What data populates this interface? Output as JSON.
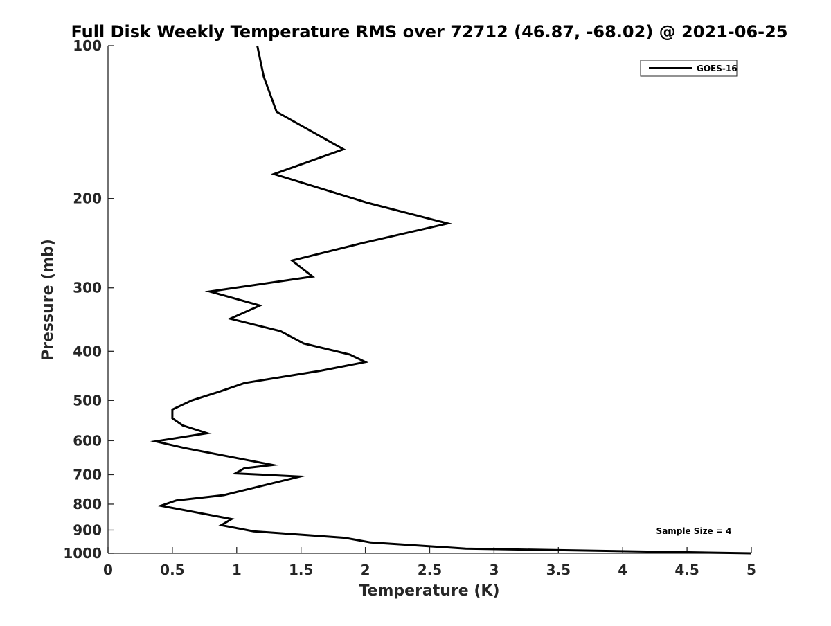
{
  "chart_data": {
    "type": "line",
    "title": "Full Disk Weekly Temperature RMS over 72712 (46.87, -68.02) @ 2021-06-25",
    "xlabel": "Temperature (K)",
    "ylabel": "Pressure (mb)",
    "xlim": [
      0,
      5
    ],
    "ylim": [
      100,
      1000
    ],
    "yscale": "log",
    "yreversed": true,
    "grid": false,
    "legend_position": "top-right",
    "xticks": [
      0,
      0.5,
      1,
      1.5,
      2,
      2.5,
      3,
      3.5,
      4,
      4.5,
      5
    ],
    "xtick_labels": [
      "0",
      "0.5",
      "1",
      "1.5",
      "2",
      "2.5",
      "3",
      "3.5",
      "4",
      "4.5",
      "5"
    ],
    "yticks": [
      100,
      200,
      300,
      400,
      500,
      600,
      700,
      800,
      900,
      1000
    ],
    "ytick_labels": [
      "100",
      "200",
      "300",
      "400",
      "500",
      "600",
      "700",
      "800",
      "900",
      "1000"
    ],
    "annotation": "Sample Size = 4",
    "series": [
      {
        "name": "GOES-16",
        "color": "#000000",
        "points": [
          [
            1.16,
            100
          ],
          [
            1.21,
            115
          ],
          [
            1.31,
            135
          ],
          [
            1.83,
            160
          ],
          [
            1.29,
            179
          ],
          [
            2.02,
            204
          ],
          [
            2.64,
            224
          ],
          [
            1.97,
            245
          ],
          [
            1.43,
            265
          ],
          [
            1.59,
            285
          ],
          [
            0.79,
            305
          ],
          [
            1.18,
            325
          ],
          [
            0.95,
            345
          ],
          [
            1.34,
            365
          ],
          [
            1.52,
            386
          ],
          [
            1.88,
            406
          ],
          [
            2.0,
            420
          ],
          [
            1.65,
            437
          ],
          [
            1.06,
            462
          ],
          [
            0.87,
            480
          ],
          [
            0.65,
            500
          ],
          [
            0.5,
            521
          ],
          [
            0.5,
            542
          ],
          [
            0.58,
            560
          ],
          [
            0.77,
            580
          ],
          [
            0.37,
            602
          ],
          [
            0.59,
            620
          ],
          [
            1.28,
            670
          ],
          [
            1.06,
            680
          ],
          [
            0.99,
            696
          ],
          [
            1.49,
            706
          ],
          [
            0.9,
            768
          ],
          [
            0.53,
            787
          ],
          [
            0.41,
            806
          ],
          [
            0.96,
            856
          ],
          [
            0.88,
            880
          ],
          [
            1.13,
            905
          ],
          [
            1.84,
            932
          ],
          [
            2.04,
            952
          ],
          [
            2.78,
            979
          ],
          [
            5.0,
            1000
          ]
        ]
      }
    ]
  }
}
